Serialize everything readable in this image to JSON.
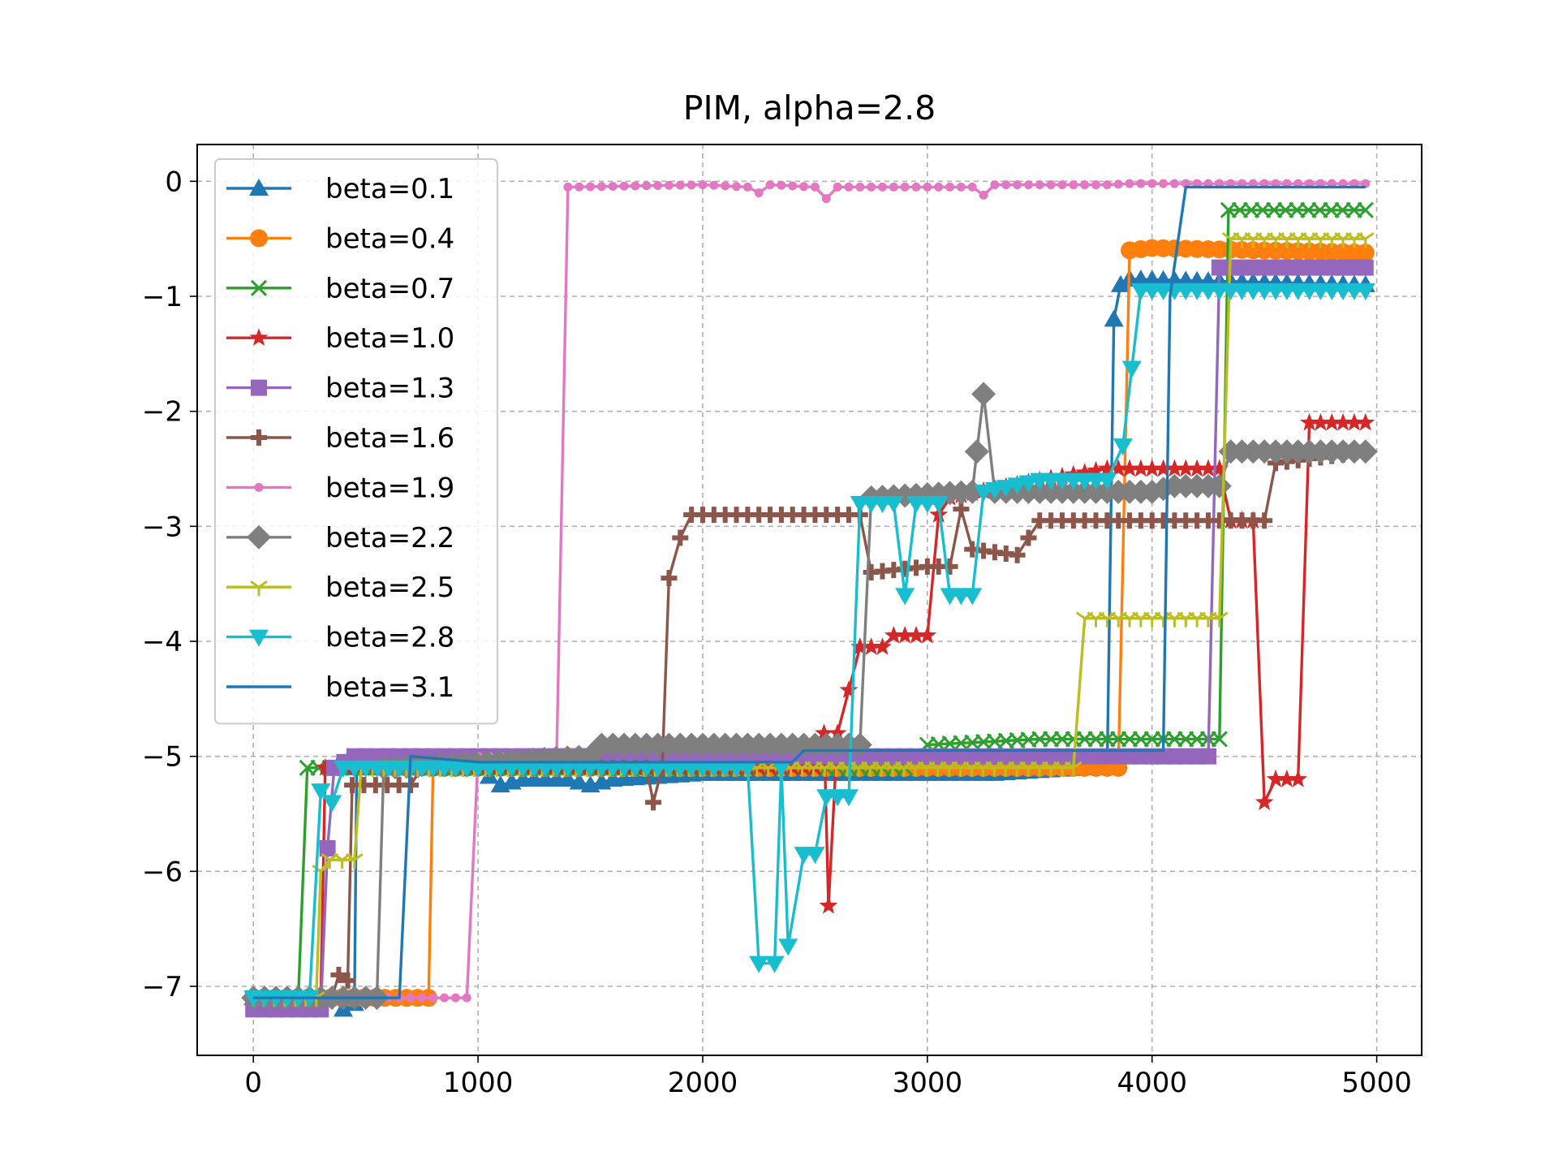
{
  "chart_data": {
    "type": "line",
    "title": "PIM, alpha=2.8",
    "xlabel": "",
    "ylabel": "",
    "xlim": [
      -250,
      5200
    ],
    "ylim": [
      -7.6,
      0.32
    ],
    "xticks": [
      0,
      1000,
      2000,
      3000,
      4000,
      5000
    ],
    "xtick_labels": [
      "0",
      "1000",
      "2000",
      "3000",
      "4000",
      "5000"
    ],
    "yticks": [
      0,
      -1,
      -2,
      -3,
      -4,
      -5,
      -6,
      -7
    ],
    "ytick_labels": [
      "0",
      "−1",
      "−2",
      "−3",
      "−4",
      "−5",
      "−6",
      "−7"
    ],
    "grid": true,
    "legend_position": "upper-left",
    "series": [
      {
        "name": "beta=0.1",
        "color": "#1f77b4",
        "marker": "triangle-up",
        "points": [
          [
            0,
            -7.1
          ],
          [
            350,
            -7.1
          ],
          [
            400,
            -7.2
          ],
          [
            450,
            -7.15
          ],
          [
            460,
            -5.1
          ],
          [
            1000,
            -5.1
          ],
          [
            1100,
            -5.25
          ],
          [
            1200,
            -5.2
          ],
          [
            1400,
            -5.2
          ],
          [
            1500,
            -5.25
          ],
          [
            1600,
            -5.2
          ],
          [
            2000,
            -5.15
          ],
          [
            3300,
            -5.15
          ],
          [
            3700,
            -5.1
          ],
          [
            3800,
            -5.1
          ],
          [
            3830,
            -1.2
          ],
          [
            3860,
            -0.9
          ],
          [
            3900,
            -0.85
          ],
          [
            4950,
            -0.9
          ]
        ]
      },
      {
        "name": "beta=0.4",
        "color": "#ff7f0e",
        "marker": "circle",
        "points": [
          [
            0,
            -7.1
          ],
          [
            780,
            -7.1
          ],
          [
            800,
            -5.1
          ],
          [
            3700,
            -5.1
          ],
          [
            3850,
            -5.1
          ],
          [
            3900,
            -0.6
          ],
          [
            4000,
            -0.58
          ],
          [
            4950,
            -0.62
          ]
        ]
      },
      {
        "name": "beta=0.7",
        "color": "#2ca02c",
        "marker": "x",
        "points": [
          [
            0,
            -7.1
          ],
          [
            200,
            -7.1
          ],
          [
            240,
            -5.1
          ],
          [
            2900,
            -5.1
          ],
          [
            3000,
            -4.9
          ],
          [
            3500,
            -4.85
          ],
          [
            4300,
            -4.85
          ],
          [
            4340,
            -0.25
          ],
          [
            4950,
            -0.25
          ]
        ]
      },
      {
        "name": "beta=1.0",
        "color": "#d62728",
        "marker": "star",
        "points": [
          [
            0,
            -7.1
          ],
          [
            300,
            -7.1
          ],
          [
            320,
            -5.1
          ],
          [
            2500,
            -5.1
          ],
          [
            2540,
            -4.8
          ],
          [
            2560,
            -6.3
          ],
          [
            2600,
            -4.8
          ],
          [
            2700,
            -4.05
          ],
          [
            2800,
            -4.05
          ],
          [
            2850,
            -3.95
          ],
          [
            3000,
            -3.95
          ],
          [
            3050,
            -2.9
          ],
          [
            3100,
            -2.75
          ],
          [
            3500,
            -2.6
          ],
          [
            3800,
            -2.5
          ],
          [
            4300,
            -2.5
          ],
          [
            4350,
            -2.95
          ],
          [
            4450,
            -2.95
          ],
          [
            4500,
            -5.4
          ],
          [
            4550,
            -5.2
          ],
          [
            4650,
            -5.2
          ],
          [
            4700,
            -2.1
          ],
          [
            4950,
            -2.1
          ]
        ]
      },
      {
        "name": "beta=1.3",
        "color": "#9467bd",
        "marker": "square",
        "points": [
          [
            0,
            -7.2
          ],
          [
            300,
            -7.2
          ],
          [
            330,
            -5.8
          ],
          [
            360,
            -5.1
          ],
          [
            450,
            -5.0
          ],
          [
            4250,
            -5.0
          ],
          [
            4300,
            -0.75
          ],
          [
            4950,
            -0.75
          ]
        ]
      },
      {
        "name": "beta=1.6",
        "color": "#8c564b",
        "marker": "plus",
        "points": [
          [
            0,
            -7.1
          ],
          [
            350,
            -7.1
          ],
          [
            380,
            -6.9
          ],
          [
            420,
            -6.95
          ],
          [
            440,
            -5.25
          ],
          [
            700,
            -5.25
          ],
          [
            750,
            -5.1
          ],
          [
            1750,
            -5.1
          ],
          [
            1780,
            -5.4
          ],
          [
            1820,
            -5.1
          ],
          [
            1850,
            -3.45
          ],
          [
            1900,
            -3.1
          ],
          [
            1950,
            -2.9
          ],
          [
            2700,
            -2.9
          ],
          [
            2750,
            -3.4
          ],
          [
            3000,
            -3.35
          ],
          [
            3100,
            -3.35
          ],
          [
            3150,
            -2.85
          ],
          [
            3200,
            -3.2
          ],
          [
            3400,
            -3.25
          ],
          [
            3500,
            -2.95
          ],
          [
            4400,
            -2.95
          ],
          [
            4450,
            -2.95
          ],
          [
            4500,
            -2.95
          ],
          [
            4550,
            -2.45
          ],
          [
            4950,
            -2.35
          ]
        ]
      },
      {
        "name": "beta=1.9",
        "color": "#e377c2",
        "marker": "dot",
        "points": [
          [
            0,
            -7.1
          ],
          [
            950,
            -7.1
          ],
          [
            1000,
            -5.0
          ],
          [
            1350,
            -5.0
          ],
          [
            1400,
            -0.05
          ],
          [
            2000,
            -0.03
          ],
          [
            2200,
            -0.05
          ],
          [
            2250,
            -0.1
          ],
          [
            2300,
            -0.03
          ],
          [
            2500,
            -0.05
          ],
          [
            2550,
            -0.15
          ],
          [
            2600,
            -0.05
          ],
          [
            3200,
            -0.05
          ],
          [
            3250,
            -0.12
          ],
          [
            3300,
            -0.03
          ],
          [
            3800,
            -0.03
          ],
          [
            3900,
            -0.02
          ],
          [
            4950,
            -0.02
          ]
        ]
      },
      {
        "name": "beta=2.2",
        "color": "#7f7f7f",
        "marker": "diamond",
        "points": [
          [
            0,
            -7.1
          ],
          [
            550,
            -7.1
          ],
          [
            580,
            -5.1
          ],
          [
            1500,
            -5.0
          ],
          [
            1550,
            -4.9
          ],
          [
            2700,
            -4.9
          ],
          [
            2750,
            -2.75
          ],
          [
            3200,
            -2.7
          ],
          [
            3220,
            -2.35
          ],
          [
            3250,
            -1.85
          ],
          [
            3300,
            -2.7
          ],
          [
            3500,
            -2.7
          ],
          [
            3700,
            -2.7
          ],
          [
            4000,
            -2.7
          ],
          [
            4100,
            -2.65
          ],
          [
            4300,
            -2.65
          ],
          [
            4350,
            -2.35
          ],
          [
            4950,
            -2.35
          ]
        ]
      },
      {
        "name": "beta=2.5",
        "color": "#bcbd22",
        "marker": "tri-down",
        "points": [
          [
            0,
            -7.1
          ],
          [
            280,
            -7.1
          ],
          [
            300,
            -6.0
          ],
          [
            340,
            -5.9
          ],
          [
            450,
            -5.9
          ],
          [
            480,
            -5.1
          ],
          [
            3650,
            -5.1
          ],
          [
            3700,
            -3.8
          ],
          [
            4300,
            -3.8
          ],
          [
            4350,
            -0.5
          ],
          [
            4950,
            -0.5
          ]
        ]
      },
      {
        "name": "beta=2.8",
        "color": "#17becf",
        "marker": "triangle-down",
        "points": [
          [
            0,
            -7.1
          ],
          [
            250,
            -7.1
          ],
          [
            300,
            -5.3
          ],
          [
            350,
            -5.4
          ],
          [
            400,
            -5.1
          ],
          [
            2200,
            -5.1
          ],
          [
            2250,
            -6.8
          ],
          [
            2320,
            -6.8
          ],
          [
            2350,
            -5.1
          ],
          [
            2380,
            -6.65
          ],
          [
            2450,
            -5.85
          ],
          [
            2500,
            -5.85
          ],
          [
            2550,
            -5.35
          ],
          [
            2600,
            -5.35
          ],
          [
            2650,
            -5.35
          ],
          [
            2700,
            -2.8
          ],
          [
            2850,
            -2.8
          ],
          [
            2900,
            -3.6
          ],
          [
            2950,
            -2.8
          ],
          [
            3050,
            -2.8
          ],
          [
            3100,
            -3.6
          ],
          [
            3200,
            -3.6
          ],
          [
            3250,
            -2.7
          ],
          [
            3500,
            -2.6
          ],
          [
            3800,
            -2.6
          ],
          [
            3870,
            -2.3
          ],
          [
            3950,
            -0.95
          ],
          [
            4950,
            -0.95
          ]
        ]
      },
      {
        "name": "beta=3.1",
        "color": "#1f77b4",
        "marker": "none",
        "points": [
          [
            0,
            -7.1
          ],
          [
            650,
            -7.1
          ],
          [
            700,
            -5.0
          ],
          [
            1000,
            -5.05
          ],
          [
            1500,
            -5.05
          ],
          [
            2000,
            -5.05
          ],
          [
            2400,
            -5.05
          ],
          [
            2450,
            -4.95
          ],
          [
            2800,
            -4.95
          ],
          [
            4050,
            -4.95
          ],
          [
            4080,
            -1.0
          ],
          [
            4150,
            -0.05
          ],
          [
            4950,
            -0.05
          ]
        ]
      }
    ]
  }
}
